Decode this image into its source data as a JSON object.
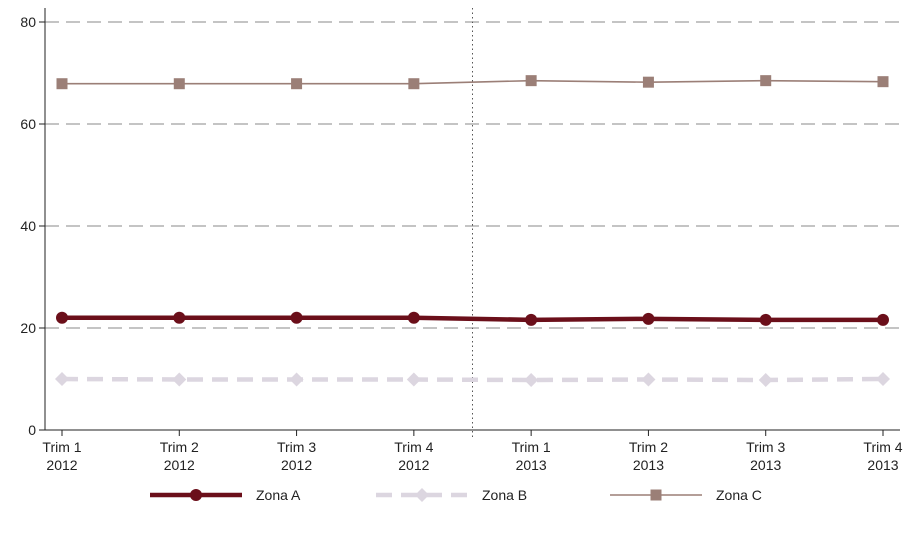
{
  "chart_data": {
    "type": "line",
    "categories": [
      [
        "Trim 1",
        "2012"
      ],
      [
        "Trim 2",
        "2012"
      ],
      [
        "Trim 3",
        "2012"
      ],
      [
        "Trim 4",
        "2012"
      ],
      [
        "Trim 1",
        "2013"
      ],
      [
        "Trim 2",
        "2013"
      ],
      [
        "Trim 3",
        "2013"
      ],
      [
        "Trim 4",
        "2013"
      ]
    ],
    "yticks": [
      "0",
      "20",
      "40",
      "60",
      "80"
    ],
    "ylim": [
      0,
      80
    ],
    "grid": "horizontal-dashed",
    "separator_after_category": 4,
    "legend_position": "bottom",
    "series": [
      {
        "name": "Zona A",
        "values": [
          22.0,
          22.0,
          22.0,
          22.0,
          21.6,
          21.8,
          21.6,
          21.6
        ],
        "color": "#6b0f1a",
        "style": "solid-thick",
        "marker": "circle"
      },
      {
        "name": "Zona B",
        "values": [
          10.0,
          9.9,
          9.9,
          9.9,
          9.8,
          9.9,
          9.8,
          10.0
        ],
        "color": "#dcd6e0",
        "style": "dashed-thick",
        "marker": "diamond"
      },
      {
        "name": "Zona C",
        "values": [
          67.9,
          67.9,
          67.9,
          67.9,
          68.5,
          68.2,
          68.5,
          68.3
        ],
        "color": "#9b7f77",
        "style": "solid-thin",
        "marker": "square"
      }
    ]
  }
}
